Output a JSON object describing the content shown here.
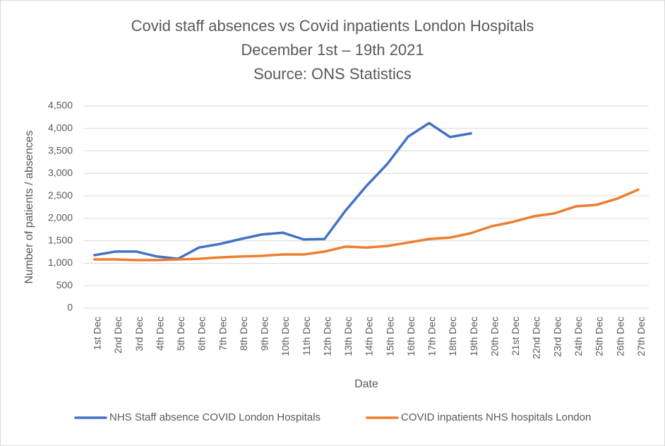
{
  "chart_data": {
    "type": "line",
    "title": [
      "Covid staff absences vs Covid inpatients London Hospitals",
      "December 1st – 19th 2021",
      "Source: ONS Statistics"
    ],
    "x_label": "Date",
    "y_label": "Number of patients / absences",
    "categories": [
      "1st Dec",
      "2nd Dec",
      "3rd Dec",
      "4th Dec",
      "5th Dec",
      "6th Dec",
      "7th Dec",
      "8th Dec",
      "9th Dec",
      "10th Dec",
      "11th Dec",
      "12th Dec",
      "13th Dec",
      "14th Dec",
      "15th Dec",
      "16th Dec",
      "17th Dec",
      "18th Dec",
      "19th Dec",
      "20th Dec",
      "21st Dec",
      "22nd Dec",
      "23rd Dec",
      "24th Dec",
      "25th Dec",
      "26th Dec",
      "27th Dec"
    ],
    "series": [
      {
        "name": "NHS Staff absence COVID London Hospitals",
        "color": "#4472c4",
        "values": [
          1180,
          1260,
          1260,
          1150,
          1100,
          1350,
          1430,
          1540,
          1640,
          1680,
          1530,
          1540,
          2170,
          2720,
          3210,
          3820,
          4120,
          3810,
          3890,
          null,
          null,
          null,
          null,
          null,
          null,
          null,
          null
        ]
      },
      {
        "name": "COVID inpatients NHS hospitals London",
        "color": "#ed7d31",
        "values": [
          1085,
          1085,
          1070,
          1070,
          1085,
          1100,
          1130,
          1150,
          1165,
          1195,
          1195,
          1260,
          1370,
          1350,
          1385,
          1460,
          1540,
          1570,
          1670,
          1825,
          1920,
          2045,
          2110,
          2265,
          2300,
          2440,
          2640
        ]
      }
    ],
    "ylim": [
      0,
      4500
    ],
    "yticks": [
      0,
      500,
      {
        "value": 1000,
        "label": "1,000"
      },
      {
        "value": 1500,
        "label": "1,500"
      },
      {
        "value": 2000,
        "label": "2,000"
      },
      {
        "value": 2500,
        "label": "2,500"
      },
      {
        "value": 3000,
        "label": "3,000"
      },
      {
        "value": 3500,
        "label": "3,500"
      },
      {
        "value": 4000,
        "label": "4,000"
      },
      {
        "value": 4500,
        "label": "4,500"
      }
    ],
    "grid": true,
    "legend": "bottom"
  }
}
